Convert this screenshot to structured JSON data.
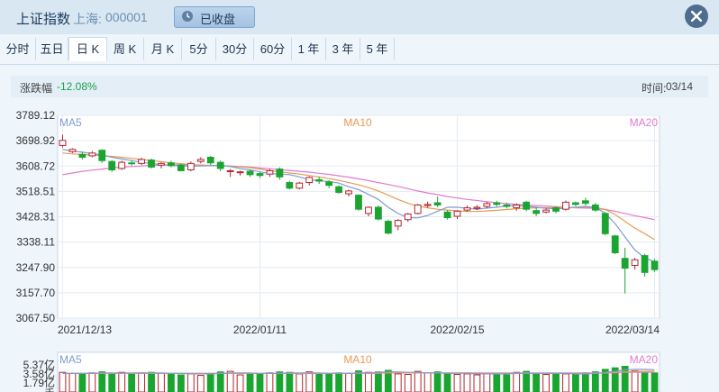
{
  "header": {
    "title": "上证指数",
    "market": "上海:",
    "code": "000001",
    "status_label": "已收盘"
  },
  "tabs": [
    {
      "label": "分时"
    },
    {
      "label": "五日"
    },
    {
      "label": "日 K",
      "active": true
    },
    {
      "label": "周 K"
    },
    {
      "label": "月 K"
    },
    {
      "label": "5分"
    },
    {
      "label": "30分"
    },
    {
      "label": "60分"
    },
    {
      "label": "1 年"
    },
    {
      "label": "3 年"
    },
    {
      "label": "5 年"
    }
  ],
  "info": {
    "change_label": "涨跌幅",
    "change_value": "-12.08%",
    "time_label": "时间:",
    "time_value": "03/14"
  },
  "colors": {
    "up": "#b3242b",
    "down": "#1aa531",
    "ma5": "#7e9bd4",
    "ma10": "#e59b55",
    "ma20": "#e07ad0"
  },
  "chart_data": {
    "type": "candlestick",
    "y_ticks": [
      "3789.12",
      "3698.92",
      "3608.72",
      "3518.51",
      "3428.31",
      "3338.11",
      "3247.90",
      "3157.70",
      "3067.50"
    ],
    "ylim": [
      3067.5,
      3789.12
    ],
    "x_ticks": [
      "2021/12/13",
      "2022/01/11",
      "2022/02/15",
      "2022/03/14"
    ],
    "x_tick_index": [
      0,
      20,
      40,
      60
    ],
    "ma_labels": {
      "ma5": "MA5",
      "ma10": "MA10",
      "ma20": "MA20"
    },
    "volume": {
      "y_ticks": [
        "5.37亿",
        "3.58亿",
        "1.79亿"
      ],
      "unit": "手",
      "ylim": [
        0,
        5.37
      ],
      "ma_labels": {
        "ma5": "MA5",
        "ma10": "MA10",
        "ma20": "MA20"
      }
    },
    "candles": [
      [
        3682,
        3700,
        3720,
        3675,
        3.9
      ],
      [
        3660,
        3668,
        3672,
        3655,
        3.7
      ],
      [
        3650,
        3640,
        3660,
        3632,
        3.6
      ],
      [
        3645,
        3655,
        3662,
        3640,
        3.8
      ],
      [
        3665,
        3628,
        3668,
        3620,
        4.0
      ],
      [
        3625,
        3595,
        3630,
        3588,
        3.7
      ],
      [
        3600,
        3622,
        3628,
        3595,
        3.9
      ],
      [
        3620,
        3618,
        3628,
        3610,
        3.6
      ],
      [
        3618,
        3632,
        3638,
        3612,
        3.8
      ],
      [
        3630,
        3605,
        3635,
        3600,
        3.9
      ],
      [
        3612,
        3618,
        3622,
        3600,
        3.7
      ],
      [
        3620,
        3610,
        3628,
        3604,
        3.5
      ],
      [
        3612,
        3592,
        3618,
        3590,
        3.4
      ],
      [
        3595,
        3618,
        3625,
        3590,
        3.6
      ],
      [
        3625,
        3632,
        3640,
        3618,
        3.3
      ],
      [
        3640,
        3620,
        3645,
        3612,
        3.7
      ],
      [
        3622,
        3600,
        3628,
        3590,
        4.0
      ],
      [
        3590,
        3592,
        3598,
        3570,
        4.1
      ],
      [
        3585,
        3588,
        3592,
        3575,
        3.4
      ],
      [
        3590,
        3578,
        3595,
        3570,
        3.6
      ],
      [
        3582,
        3575,
        3588,
        3566,
        3.5
      ],
      [
        3580,
        3592,
        3598,
        3570,
        3.8
      ],
      [
        3598,
        3570,
        3604,
        3560,
        4.0
      ],
      [
        3550,
        3530,
        3556,
        3525,
        3.9
      ],
      [
        3530,
        3548,
        3552,
        3525,
        3.6
      ],
      [
        3550,
        3568,
        3572,
        3540,
        4.0
      ],
      [
        3560,
        3555,
        3570,
        3545,
        3.5
      ],
      [
        3552,
        3540,
        3558,
        3530,
        3.6
      ],
      [
        3535,
        3515,
        3540,
        3510,
        3.8
      ],
      [
        3510,
        3520,
        3525,
        3500,
        3.7
      ],
      [
        3505,
        3455,
        3508,
        3450,
        4.2
      ],
      [
        3440,
        3462,
        3465,
        3430,
        3.9
      ],
      [
        3462,
        3420,
        3468,
        3415,
        4.0
      ],
      [
        3412,
        3370,
        3418,
        3365,
        4.3
      ],
      [
        3395,
        3415,
        3420,
        3380,
        3.6
      ],
      [
        3418,
        3438,
        3442,
        3410,
        3.5
      ],
      [
        3440,
        3470,
        3474,
        3436,
        4.1
      ],
      [
        3468,
        3472,
        3482,
        3460,
        3.8
      ],
      [
        3478,
        3470,
        3500,
        3462,
        4.0
      ],
      [
        3445,
        3425,
        3452,
        3418,
        3.7
      ],
      [
        3430,
        3448,
        3452,
        3420,
        3.5
      ],
      [
        3452,
        3460,
        3468,
        3446,
        3.6
      ],
      [
        3458,
        3462,
        3470,
        3452,
        3.4
      ],
      [
        3465,
        3475,
        3482,
        3458,
        3.7
      ],
      [
        3478,
        3472,
        3485,
        3465,
        3.6
      ],
      [
        3470,
        3465,
        3478,
        3458,
        3.4
      ],
      [
        3460,
        3470,
        3476,
        3450,
        3.9
      ],
      [
        3480,
        3455,
        3485,
        3448,
        4.1
      ],
      [
        3450,
        3440,
        3462,
        3430,
        3.6
      ],
      [
        3445,
        3452,
        3458,
        3440,
        3.5
      ],
      [
        3460,
        3448,
        3465,
        3440,
        3.7
      ],
      [
        3455,
        3480,
        3486,
        3450,
        3.6
      ],
      [
        3478,
        3472,
        3482,
        3466,
        3.5
      ],
      [
        3485,
        3476,
        3496,
        3468,
        3.8
      ],
      [
        3470,
        3452,
        3478,
        3446,
        4.0
      ],
      [
        3440,
        3368,
        3445,
        3362,
        4.5
      ],
      [
        3360,
        3300,
        3364,
        3295,
        4.8
      ],
      [
        3280,
        3245,
        3318,
        3155,
        5.1
      ],
      [
        3255,
        3275,
        3282,
        3240,
        4.2
      ],
      [
        3290,
        3230,
        3296,
        3215,
        4.0
      ],
      [
        3270,
        3240,
        3278,
        3232,
        3.8
      ]
    ],
    "ma5": [
      3668,
      3662,
      3658,
      3653,
      3648,
      3640,
      3634,
      3628,
      3622,
      3618,
      3614,
      3611,
      3610,
      3608,
      3609,
      3610,
      3612,
      3607,
      3600,
      3595,
      3588,
      3582,
      3580,
      3578,
      3570,
      3560,
      3556,
      3554,
      3548,
      3535,
      3525,
      3508,
      3490,
      3462,
      3440,
      3425,
      3424,
      3433,
      3448,
      3462,
      3462,
      3458,
      3455,
      3459,
      3462,
      3466,
      3468,
      3466,
      3462,
      3458,
      3457,
      3458,
      3462,
      3465,
      3462,
      3440,
      3404,
      3356,
      3310,
      3282,
      3268
    ],
    "ma10": [
      3655,
      3652,
      3650,
      3648,
      3646,
      3643,
      3640,
      3636,
      3632,
      3628,
      3624,
      3620,
      3617,
      3614,
      3612,
      3610,
      3609,
      3608,
      3606,
      3603,
      3598,
      3592,
      3588,
      3584,
      3580,
      3575,
      3570,
      3564,
      3558,
      3550,
      3542,
      3532,
      3520,
      3505,
      3490,
      3476,
      3466,
      3460,
      3455,
      3452,
      3449,
      3447,
      3447,
      3449,
      3451,
      3454,
      3457,
      3459,
      3460,
      3461,
      3461,
      3461,
      3461,
      3462,
      3462,
      3454,
      3436,
      3412,
      3388,
      3368,
      3347
    ],
    "ma20": [
      3578,
      3584,
      3590,
      3594,
      3598,
      3602,
      3605,
      3607,
      3609,
      3611,
      3612,
      3613,
      3613,
      3613,
      3612,
      3611,
      3610,
      3609,
      3607,
      3605,
      3602,
      3599,
      3596,
      3593,
      3590,
      3587,
      3583,
      3579,
      3574,
      3569,
      3563,
      3557,
      3550,
      3543,
      3536,
      3528,
      3520,
      3513,
      3507,
      3500,
      3495,
      3490,
      3486,
      3482,
      3478,
      3475,
      3472,
      3470,
      3468,
      3466,
      3464,
      3462,
      3460,
      3459,
      3458,
      3454,
      3448,
      3440,
      3432,
      3425,
      3418
    ],
    "vol_ma5": [
      3.7,
      3.7,
      3.7,
      3.7,
      3.8,
      3.8,
      3.8,
      3.8,
      3.8,
      3.8,
      3.8,
      3.7,
      3.7,
      3.6,
      3.6,
      3.6,
      3.7,
      3.8,
      3.8,
      3.8,
      3.7,
      3.7,
      3.7,
      3.8,
      3.8,
      3.8,
      3.8,
      3.7,
      3.7,
      3.7,
      3.8,
      3.8,
      3.9,
      4.0,
      4.0,
      3.9,
      3.9,
      3.8,
      3.8,
      3.7,
      3.7,
      3.7,
      3.6,
      3.6,
      3.6,
      3.6,
      3.7,
      3.7,
      3.7,
      3.7,
      3.7,
      3.7,
      3.6,
      3.6,
      3.7,
      3.9,
      4.1,
      4.4,
      4.5,
      4.5,
      4.4
    ],
    "vol_ma10": [
      3.7,
      3.7,
      3.7,
      3.7,
      3.7,
      3.7,
      3.7,
      3.7,
      3.7,
      3.7,
      3.7,
      3.7,
      3.7,
      3.7,
      3.7,
      3.7,
      3.7,
      3.7,
      3.7,
      3.7,
      3.7,
      3.7,
      3.7,
      3.7,
      3.7,
      3.7,
      3.7,
      3.7,
      3.7,
      3.7,
      3.8,
      3.8,
      3.8,
      3.8,
      3.8,
      3.8,
      3.8,
      3.8,
      3.8,
      3.8,
      3.8,
      3.8,
      3.8,
      3.7,
      3.7,
      3.7,
      3.7,
      3.7,
      3.7,
      3.7,
      3.7,
      3.7,
      3.7,
      3.7,
      3.7,
      3.8,
      3.9,
      4.0,
      4.1,
      4.1,
      4.1
    ],
    "vol_ma20": [
      3.7,
      3.7,
      3.7,
      3.7,
      3.7,
      3.7,
      3.7,
      3.7,
      3.7,
      3.7,
      3.7,
      3.7,
      3.7,
      3.7,
      3.7,
      3.7,
      3.7,
      3.7,
      3.7,
      3.7,
      3.7,
      3.7,
      3.7,
      3.7,
      3.7,
      3.7,
      3.7,
      3.7,
      3.7,
      3.7,
      3.7,
      3.7,
      3.7,
      3.8,
      3.8,
      3.8,
      3.8,
      3.8,
      3.8,
      3.8,
      3.8,
      3.8,
      3.8,
      3.8,
      3.8,
      3.8,
      3.8,
      3.8,
      3.8,
      3.8,
      3.8,
      3.8,
      3.8,
      3.8,
      3.8,
      3.8,
      3.8,
      3.9,
      3.9,
      3.9,
      3.9
    ]
  }
}
